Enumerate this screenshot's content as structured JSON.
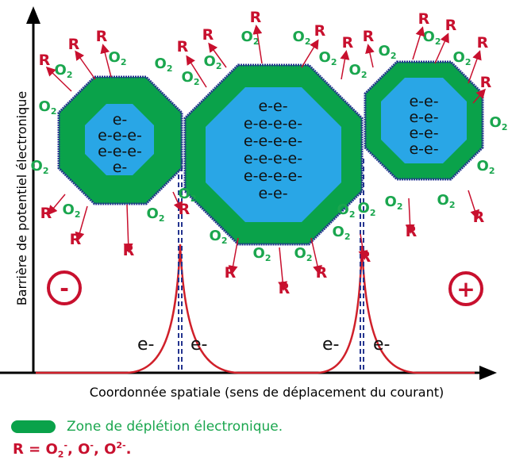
{
  "axes": {
    "y_label": "Barrière de potentiel électronique",
    "x_label": "Coordonnée spatiale (sens de déplacement du courant)"
  },
  "poles": {
    "negative": "-",
    "positive": "+"
  },
  "electron_label": "e-",
  "species": {
    "oxygen": "O",
    "oxygen_sub": "2",
    "radical": "R"
  },
  "grains": [
    {
      "lines": [
        "e-",
        "e-e-e-",
        "e-e-e-",
        "e-"
      ]
    },
    {
      "lines": [
        "e-e-",
        "e-e-e-e-",
        "e-e-e-e-",
        "e-e-e-e-",
        "e-e-e-e-",
        "e-e-"
      ]
    },
    {
      "lines": [
        "e-e-",
        "e-e-",
        "e-e-",
        "e-e-"
      ]
    }
  ],
  "legend": {
    "depletion_label": "Zone de déplétion électronique."
  },
  "formula": {
    "text": "R = O2-, O-, O2-."
  },
  "colors": {
    "depletion": "#0aa24a",
    "core": "#29a6e6",
    "oxygen": "#1aa64e",
    "radical": "#c8102e",
    "curve": "#d0202a",
    "boundary": "#24348f"
  }
}
